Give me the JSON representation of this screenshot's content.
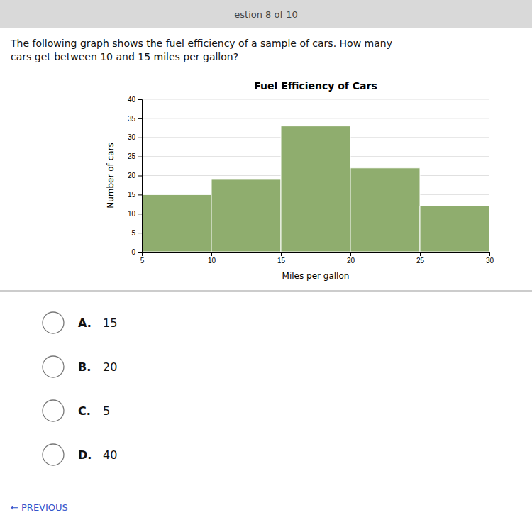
{
  "header_text": "estion 8 of 10",
  "question_text": "The following graph shows the fuel efficiency of a sample of cars. How many\ncars get between 10 and 15 miles per gallon?",
  "choices": [
    {
      "letter": "A.",
      "text": "15"
    },
    {
      "letter": "B.",
      "text": "20"
    },
    {
      "letter": "C.",
      "text": "5"
    },
    {
      "letter": "D.",
      "text": "40"
    }
  ],
  "prev_text": "← PREVIOUS",
  "chart_data": {
    "type": "histogram",
    "title": "Fuel Efficiency of Cars",
    "x_label": "Miles per gallon",
    "y_label": "Number of cars",
    "bins": [
      5,
      10,
      15,
      20,
      25,
      30
    ],
    "values": [
      15,
      19,
      33,
      22,
      12
    ],
    "color": "#8fad6e",
    "xlim": [
      5,
      30
    ],
    "ylim": [
      0,
      40
    ],
    "xticks": [
      5,
      10,
      15,
      20,
      25,
      30
    ],
    "yticks": [
      0,
      5,
      10,
      15,
      20,
      25,
      30,
      35,
      40
    ],
    "grid": "y"
  }
}
